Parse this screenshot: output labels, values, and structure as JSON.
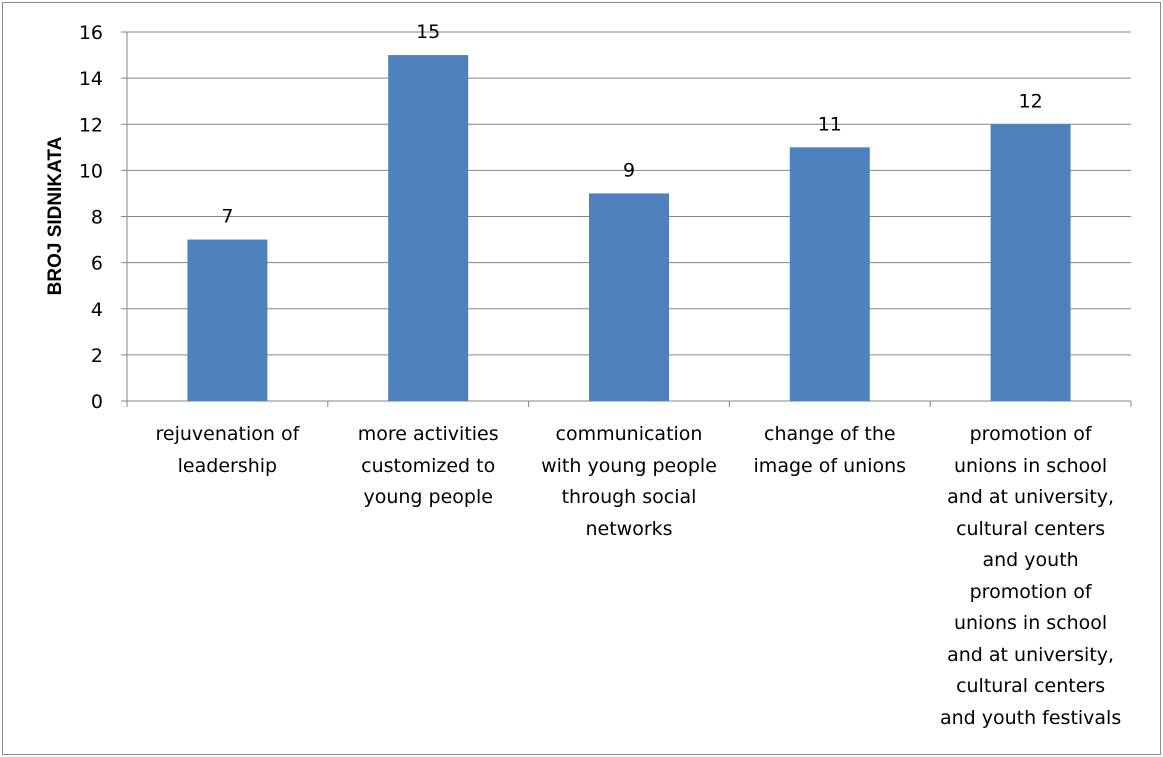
{
  "chart_data": {
    "type": "bar",
    "title": "",
    "xlabel": "",
    "ylabel": "BROJ SIDNIKATA",
    "ylim": [
      0,
      16
    ],
    "yticks": [
      0,
      2,
      4,
      6,
      8,
      10,
      12,
      14,
      16
    ],
    "grid": true,
    "bar_color": "#4f81bd",
    "categories": [
      "rejuvenation of\nleadership",
      "more activities\ncustomized to\nyoung people",
      "communication\nwith young people\nthrough social\nnetworks",
      "change of the\nimage of unions",
      "promotion of\nunions in school\nand at university,\ncultural centers\nand youth\npromotion of\nunions in school\nand at university,\ncultural centers\nand youth festivals"
    ],
    "values": [
      7,
      15,
      9,
      11,
      12
    ],
    "data_labels": [
      "7",
      "15",
      "9",
      "11",
      "12"
    ]
  }
}
